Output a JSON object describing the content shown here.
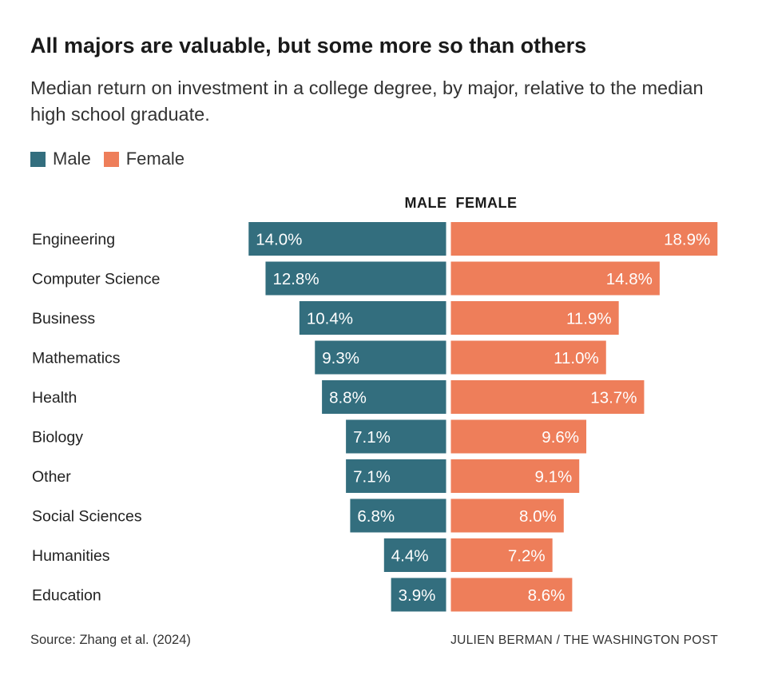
{
  "title": "All majors are valuable, but some more so than others",
  "subtitle": "Median return on investment in a college degree, by major, relative to the median high school graduate.",
  "legend": {
    "male_label": "Male",
    "female_label": "Female"
  },
  "colors": {
    "male": "#336e7e",
    "female": "#ee7e5a"
  },
  "source": "Source: Zhang et al. (2024)",
  "credit": "JULIEN BERMAN / THE WASHINGTON POST",
  "chart_data": {
    "type": "bar",
    "orientation": "horizontal-diverging",
    "title": "All majors are valuable, but some more so than others",
    "column_headers": {
      "male": "MALE",
      "female": "FEMALE"
    },
    "categories": [
      "Engineering",
      "Computer Science",
      "Business",
      "Mathematics",
      "Health",
      "Biology",
      "Other",
      "Social Sciences",
      "Humanities",
      "Education"
    ],
    "series": [
      {
        "name": "Male",
        "values": [
          14.0,
          12.8,
          10.4,
          9.3,
          8.8,
          7.1,
          7.1,
          6.8,
          4.4,
          3.9
        ]
      },
      {
        "name": "Female",
        "values": [
          18.9,
          14.8,
          11.9,
          11.0,
          13.7,
          9.6,
          9.1,
          8.0,
          7.2,
          8.6
        ]
      }
    ],
    "value_labels": {
      "male": [
        "14.0%",
        "12.8%",
        "10.4%",
        "9.3%",
        "8.8%",
        "7.1%",
        "7.1%",
        "6.8%",
        "4.4%",
        "3.9%"
      ],
      "female": [
        "18.9%",
        "14.8%",
        "11.9%",
        "11.0%",
        "13.7%",
        "9.6%",
        "9.1%",
        "8.0%",
        "7.2%",
        "8.6%"
      ]
    },
    "unit": "%",
    "xlabel": "",
    "ylabel": ""
  }
}
